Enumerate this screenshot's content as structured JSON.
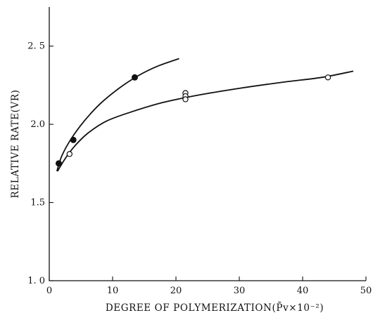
{
  "chart_data": {
    "type": "scatter",
    "title": "",
    "xlabel": "DEGREE OF POLYMERIZATION(P̄v×10⁻²)",
    "ylabel": "RELATIVE RATE(VR)",
    "xlim": [
      0,
      50
    ],
    "ylim": [
      1.0,
      2.75
    ],
    "xticks": [
      0,
      10,
      20,
      30,
      40,
      50
    ],
    "xtick_labels": [
      "0",
      "10",
      "20",
      "30",
      "40",
      "50"
    ],
    "yticks": [
      1.0,
      1.5,
      2.0,
      2.5
    ],
    "ytick_labels": [
      "1. 0",
      "1.5",
      "2.0",
      "2. 5"
    ],
    "grid": false,
    "series": [
      {
        "marker": "filled-circle",
        "points": [
          {
            "x": 1.5,
            "y": 1.75
          },
          {
            "x": 3.8,
            "y": 1.9
          },
          {
            "x": 13.5,
            "y": 2.3
          }
        ],
        "curve": [
          {
            "x": 1.2,
            "y": 1.7
          },
          {
            "x": 2.0,
            "y": 1.8
          },
          {
            "x": 3.5,
            "y": 1.91
          },
          {
            "x": 5.5,
            "y": 2.02
          },
          {
            "x": 8.0,
            "y": 2.13
          },
          {
            "x": 11.0,
            "y": 2.23
          },
          {
            "x": 14.0,
            "y": 2.31
          },
          {
            "x": 17.0,
            "y": 2.37
          },
          {
            "x": 20.5,
            "y": 2.42
          }
        ]
      },
      {
        "marker": "open-circle",
        "points": [
          {
            "x": 3.2,
            "y": 1.81
          },
          {
            "x": 21.5,
            "y": 2.2
          },
          {
            "x": 21.5,
            "y": 2.18
          },
          {
            "x": 21.5,
            "y": 2.16
          },
          {
            "x": 44.0,
            "y": 2.3
          }
        ],
        "curve": [
          {
            "x": 1.3,
            "y": 1.7
          },
          {
            "x": 2.5,
            "y": 1.78
          },
          {
            "x": 4.0,
            "y": 1.86
          },
          {
            "x": 6.0,
            "y": 1.94
          },
          {
            "x": 9.0,
            "y": 2.02
          },
          {
            "x": 13.0,
            "y": 2.08
          },
          {
            "x": 18.0,
            "y": 2.14
          },
          {
            "x": 24.0,
            "y": 2.19
          },
          {
            "x": 30.0,
            "y": 2.23
          },
          {
            "x": 37.0,
            "y": 2.27
          },
          {
            "x": 43.0,
            "y": 2.3
          },
          {
            "x": 48.0,
            "y": 2.34
          }
        ]
      }
    ]
  }
}
